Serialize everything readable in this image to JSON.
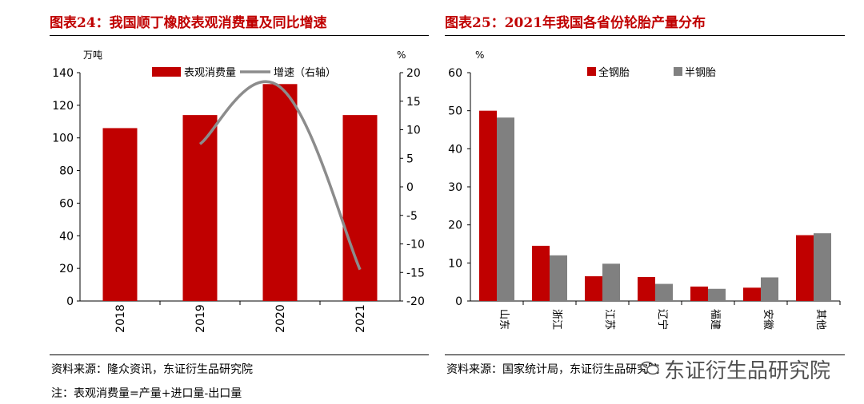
{
  "left_panel": {
    "title": "图表24：我国顺丁橡胶表观消费量及同比增速",
    "source": "资料来源：隆众资讯，东证衍生品研究院",
    "note": "注：表观消费量=产量+进口量-出口量"
  },
  "right_panel": {
    "title": "图表25：2021年我国各省份轮胎产量分布",
    "source": "资料来源：国家统计局，东证衍生品研究院"
  },
  "watermark": "东证衍生品研究院",
  "colors": {
    "red": "#c00000",
    "gray": "#7f7f7f",
    "title_red": "#c00000"
  },
  "chart_data": [
    {
      "type": "bar",
      "title": "我国顺丁橡胶表观消费量及同比增速",
      "categories": [
        "2018",
        "2019",
        "2020",
        "2021"
      ],
      "ylabel": "万吨",
      "y2label": "%",
      "ylim": [
        0,
        140
      ],
      "yticks": [
        0,
        20,
        40,
        60,
        80,
        100,
        120,
        140
      ],
      "y2lim": [
        -20,
        20
      ],
      "y2ticks": [
        -20,
        -15,
        -10,
        -5,
        0,
        5,
        10,
        15,
        20
      ],
      "series": [
        {
          "name": "表观消费量",
          "kind": "bar",
          "axis": "left",
          "color": "#c00000",
          "values": [
            106,
            114,
            133,
            114
          ]
        },
        {
          "name": "增速（右轴）",
          "kind": "line",
          "axis": "right",
          "color": "#8c8c8c",
          "values": [
            null,
            7.5,
            17.5,
            -14.5
          ]
        }
      ],
      "legend": "top-center",
      "grid": false
    },
    {
      "type": "bar",
      "title": "2021年我国各省份轮胎产量分布",
      "categories": [
        "山东",
        "浙江",
        "江苏",
        "辽宁",
        "福建",
        "安徽",
        "其他"
      ],
      "ylabel": "%",
      "ylim": [
        0,
        60
      ],
      "yticks": [
        0,
        10,
        20,
        30,
        40,
        50,
        60
      ],
      "series": [
        {
          "name": "全钢胎",
          "color": "#c00000",
          "values": [
            50.0,
            14.5,
            6.5,
            6.3,
            3.8,
            3.5,
            17.3
          ]
        },
        {
          "name": "半钢胎",
          "color": "#808080",
          "values": [
            48.2,
            12.0,
            9.8,
            4.5,
            3.2,
            6.2,
            17.8
          ]
        }
      ],
      "legend": "top-center",
      "grid": false
    }
  ]
}
